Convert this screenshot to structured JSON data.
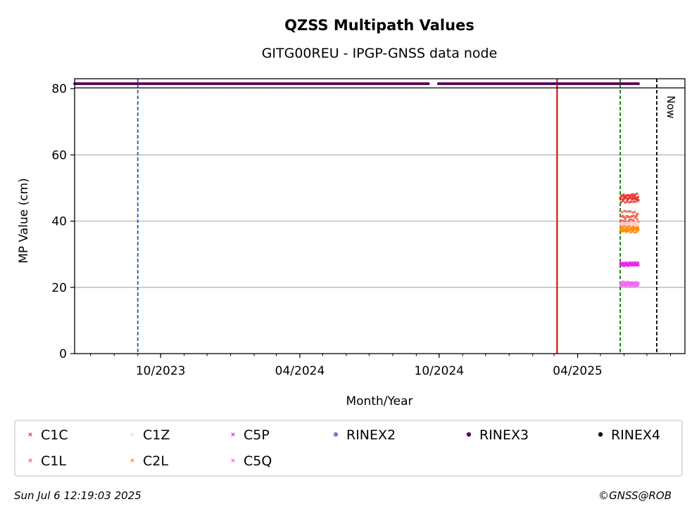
{
  "chart_data": {
    "type": "scatter",
    "title": "QZSS Multipath Values",
    "subtitle": "GITG00REU - IPGP-GNSS data node",
    "xlabel": "Month/Year",
    "ylabel": "MP Value (cm)",
    "ylim": [
      0,
      83
    ],
    "xlim": [
      "2023-06-10",
      "2025-08-20"
    ],
    "y_ticks": [
      0,
      20,
      40,
      60,
      80
    ],
    "x_ticks": [
      {
        "date": "2023-10-01",
        "label": "10/2023"
      },
      {
        "date": "2024-04-01",
        "label": "04/2024"
      },
      {
        "date": "2024-10-01",
        "label": "10/2024"
      },
      {
        "date": "2025-04-01",
        "label": "04/2025"
      }
    ],
    "grid": "horizontal",
    "now_label": "Now",
    "vertical_lines": [
      {
        "date": "2023-09-01",
        "color": "#1f5fa0",
        "style": "dashed"
      },
      {
        "date": "2025-03-05",
        "color": "#cc0000",
        "style": "solid"
      },
      {
        "date": "2025-05-27",
        "color": "#008000",
        "style": "dashed"
      },
      {
        "date": "2025-07-14",
        "color": "#000000",
        "style": "dashed"
      }
    ],
    "rinex_band": {
      "name": "RINEX3",
      "y": 81.5,
      "segments": [
        [
          "2023-06-10",
          "2024-09-17"
        ],
        [
          "2024-09-30",
          "2025-06-20"
        ]
      ]
    },
    "series": [
      {
        "name": "C1C",
        "color": "#e8322a",
        "marker": "x",
        "start": "2025-05-27",
        "end": "2025-06-20",
        "mean": 47,
        "spread": 1.4
      },
      {
        "name": "C1L",
        "color": "#f06050",
        "marker": "x",
        "start": "2025-05-27",
        "end": "2025-06-20",
        "mean": 41,
        "spread": 2.2
      },
      {
        "name": "C1Z",
        "color": "#ffd0d4",
        "marker": "x",
        "start": "2025-05-27",
        "end": "2025-06-20",
        "mean": 39,
        "spread": 0.8
      },
      {
        "name": "C2L",
        "color": "#ff8c00",
        "marker": "x",
        "start": "2025-05-27",
        "end": "2025-06-20",
        "mean": 37.5,
        "spread": 1.0
      },
      {
        "name": "C5P",
        "color": "#ee22ee",
        "marker": "x",
        "start": "2025-05-27",
        "end": "2025-06-20",
        "mean": 27,
        "spread": 0.6
      },
      {
        "name": "C5Q",
        "color": "#f266f2",
        "marker": "x",
        "start": "2025-05-27",
        "end": "2025-06-20",
        "mean": 21,
        "spread": 0.8
      }
    ],
    "legend": {
      "placement": "bottom",
      "entries": [
        {
          "name": "C1C",
          "color": "#e8322a",
          "marker": "x"
        },
        {
          "name": "C1Z",
          "color": "#ffd0d4",
          "marker": "x"
        },
        {
          "name": "C5P",
          "color": "#ee22ee",
          "marker": "x"
        },
        {
          "name": "RINEX2",
          "color": "#8877c0",
          "marker": "dot"
        },
        {
          "name": "RINEX3",
          "color": "#5a0a5a",
          "marker": "dot"
        },
        {
          "name": "RINEX4",
          "color": "#150015",
          "marker": "dot"
        },
        {
          "name": "C1L",
          "color": "#f06050",
          "marker": "x"
        },
        {
          "name": "C2L",
          "color": "#ff8c00",
          "marker": "x"
        },
        {
          "name": "C5Q",
          "color": "#f266f2",
          "marker": "x"
        }
      ]
    }
  },
  "footer": {
    "timestamp": "Sun Jul  6 12:19:03 2025",
    "copyright": "©GNSS@ROB"
  }
}
